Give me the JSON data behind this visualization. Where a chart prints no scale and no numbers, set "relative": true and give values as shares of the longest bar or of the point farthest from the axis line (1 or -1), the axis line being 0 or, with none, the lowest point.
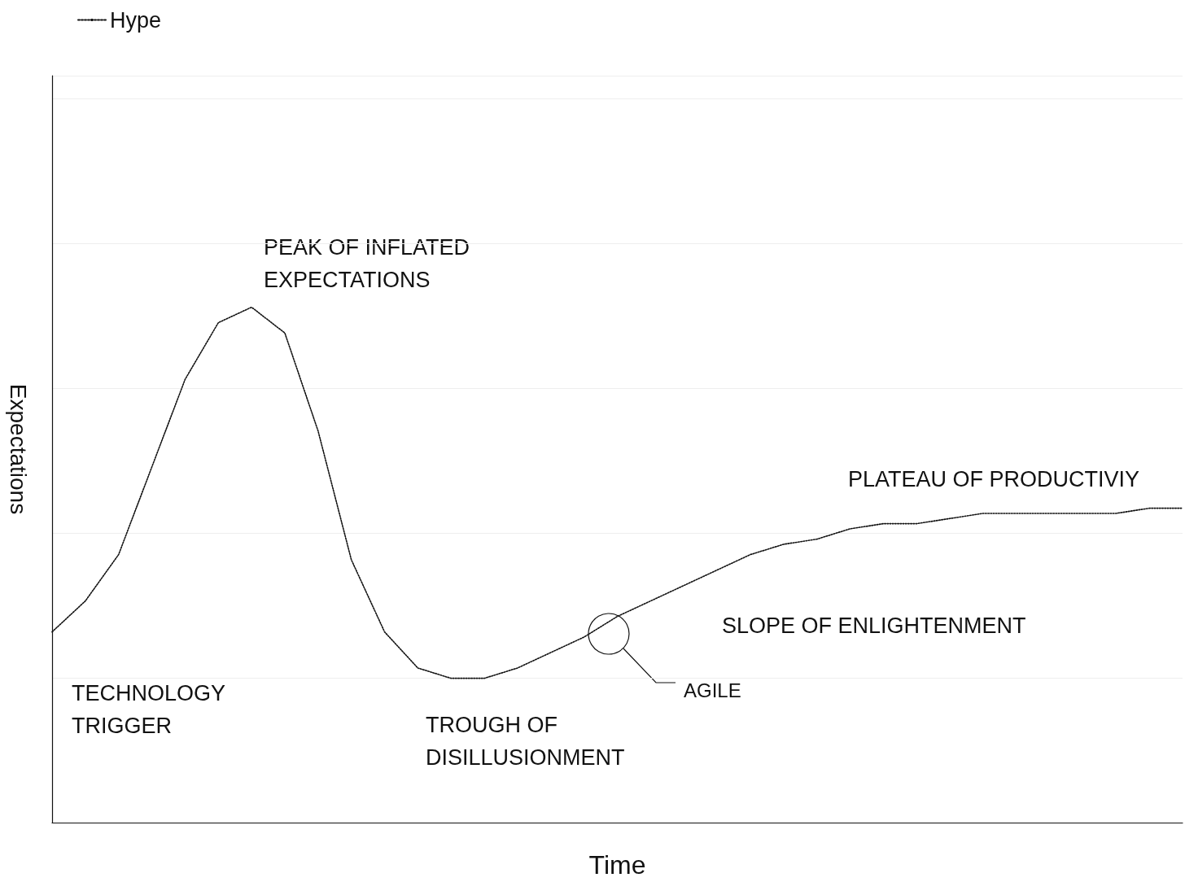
{
  "chart_data": {
    "type": "line",
    "xlabel": "Time",
    "ylabel": "Expectations",
    "relative": true,
    "grid": "y",
    "legend": "top left",
    "line_style": "dotted",
    "categories": [
      null,
      null,
      null,
      null,
      null,
      null,
      null,
      null,
      null,
      null,
      null,
      null,
      null,
      null,
      null,
      null,
      null,
      null,
      null,
      null,
      null,
      null,
      null,
      null,
      null,
      null,
      null,
      null,
      null,
      null,
      null,
      null,
      null,
      null,
      null
    ],
    "series": [
      {
        "name": "Hype",
        "color": "#111111",
        "values": [
          0.37,
          0.43,
          0.52,
          0.69,
          0.86,
          0.97,
          1,
          0.95,
          0.76,
          0.51,
          0.37,
          0.3,
          0.28,
          0.28,
          0.3,
          0.33,
          0.36,
          0.4,
          0.43,
          0.46,
          0.49,
          0.52,
          0.54,
          0.55,
          0.57,
          0.58,
          0.58,
          0.59,
          0.6,
          0.6,
          0.6,
          0.6,
          0.6,
          0.61,
          0.61
        ]
      }
    ],
    "annotations": [
      "TECHNOLOGY\nTRIGGER",
      "PEAK OF INFLATED\nEXPECTATIONS",
      "TROUGH OF\nDISILLUSIONMENT",
      "SLOPE OF ENLIGHTENMENT",
      "PLATEAU OF PRODUCTIVIY",
      "AGILE"
    ]
  }
}
